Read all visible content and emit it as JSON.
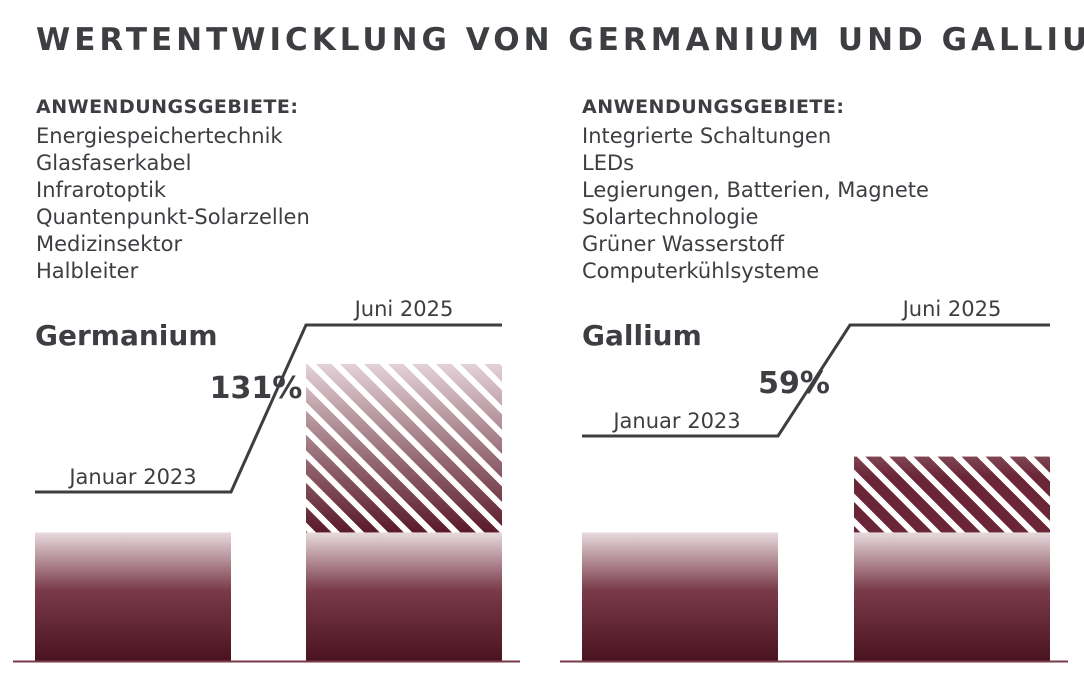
{
  "title": "WERTENTWICKLUNG VON GERMANIUM UND GALLIUM",
  "panels": [
    {
      "heading": "ANWENDUNGSGEBIETE:",
      "items": [
        "Energiespeichertechnik",
        "Glasfaserkabel",
        "Infrarotoptik",
        "Quantenpunkt-Solarzellen",
        "Medizinsektor",
        "Halbleiter"
      ]
    },
    {
      "heading": "ANWENDUNGSGEBIETE:",
      "items": [
        "Integrierte Schaltungen",
        "LEDs",
        "Legierungen, Batterien, Magnete",
        "Solartechnologie",
        "Grüner Wasserstoff",
        "Computerkühlsysteme"
      ]
    }
  ],
  "colors": {
    "text": "#3c3e42",
    "bar_dark": "#4a1320",
    "bar_mid": "#7a3a4a",
    "bar_light": "#e8dadd",
    "baseline": "#7a3a4a"
  },
  "chart_data": [
    {
      "type": "bar",
      "title": "Germanium",
      "categories": [
        "Januar 2023",
        "Juni 2025"
      ],
      "values": [
        100,
        231
      ],
      "increase_label": "131%",
      "increase_percent": 131
    },
    {
      "type": "bar",
      "title": "Gallium",
      "categories": [
        "Januar 2023",
        "Juni 2025"
      ],
      "values": [
        100,
        159
      ],
      "increase_label": "59%",
      "increase_percent": 59
    }
  ]
}
